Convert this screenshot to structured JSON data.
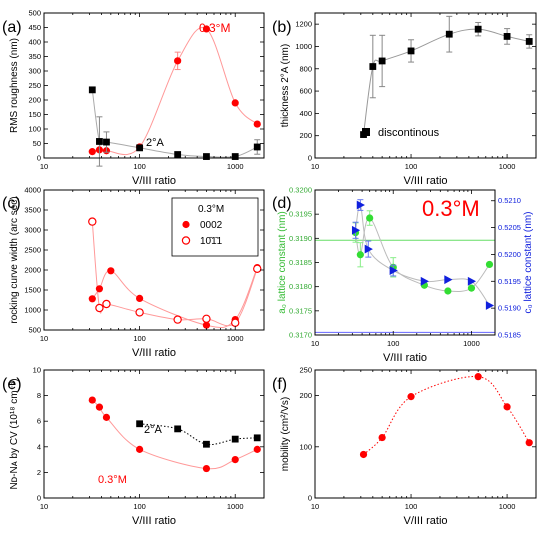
{
  "chart_data": [
    {
      "panel": "(a)",
      "type": "scatter",
      "xlabel": "V/III ratio",
      "ylabel": "RMS roughness  (nm)",
      "xscale": "log",
      "xlim": [
        10,
        2000
      ],
      "ylim": [
        0,
        500
      ],
      "xticks": [
        "10",
        "100",
        "1000"
      ],
      "yticks": [
        "0",
        "50",
        "100",
        "150",
        "200",
        "250",
        "300",
        "350",
        "400",
        "450",
        "500"
      ],
      "annotations": [
        {
          "text": "0.3°M",
          "color": "#ff0000"
        },
        {
          "text": "2°A",
          "color": "#000000"
        }
      ],
      "series": [
        {
          "name": "0.3°M",
          "marker": "circle",
          "color": "#ff0000",
          "x": [
            32,
            38,
            45,
            100,
            250,
            500,
            1000,
            1700
          ],
          "y": [
            22,
            28,
            25,
            38,
            335,
            445,
            190,
            117
          ],
          "err": [
            0,
            0,
            0,
            0,
            30,
            0,
            0,
            0
          ]
        },
        {
          "name": "2°A",
          "marker": "square",
          "color": "#000000",
          "x": [
            32,
            38,
            45,
            100,
            250,
            500,
            1000,
            1700
          ],
          "y": [
            235,
            57,
            55,
            35,
            12,
            5,
            5,
            38
          ],
          "err": [
            0,
            85,
            35,
            0,
            0,
            0,
            0,
            25
          ]
        }
      ]
    },
    {
      "panel": "(b)",
      "type": "scatter",
      "xlabel": "V/III ratio",
      "ylabel": "thickness 2°A  (nm)",
      "xscale": "log",
      "xlim": [
        10,
        2000
      ],
      "ylim": [
        0,
        1300
      ],
      "xticks": [
        "10",
        "100",
        "1000"
      ],
      "yticks": [
        "0",
        "200",
        "400",
        "600",
        "800",
        "1000",
        "1200"
      ],
      "annotations": [
        {
          "text": "discontinous",
          "color": "#000000"
        }
      ],
      "series": [
        {
          "name": "2°A",
          "marker": "square",
          "color": "#000000",
          "x": [
            32,
            40,
            50,
            100,
            250,
            500,
            1000,
            1700
          ],
          "y": [
            210,
            820,
            870,
            960,
            1110,
            1155,
            1090,
            1045
          ],
          "err": [
            0,
            280,
            230,
            100,
            160,
            60,
            70,
            60
          ]
        }
      ]
    },
    {
      "panel": "(c)",
      "type": "scatter",
      "xlabel": "V/III ratio",
      "ylabel": "rocking curve width  (arc sec)",
      "xscale": "log",
      "xlim": [
        10,
        2000
      ],
      "ylim": [
        500,
        4000
      ],
      "xticks": [
        "10",
        "100",
        "1000"
      ],
      "yticks": [
        "500",
        "1000",
        "1500",
        "2000",
        "2500",
        "3000",
        "3500",
        "4000"
      ],
      "legend": {
        "title": "0.3°M",
        "position": "top-right",
        "entries": [
          "0002",
          "10̄1̄1"
        ]
      },
      "series": [
        {
          "name": "0002",
          "marker": "circle",
          "color": "#ff0000",
          "x": [
            32,
            38,
            50,
            100,
            500,
            1000,
            1700
          ],
          "y": [
            1280,
            1530,
            1980,
            1290,
            620,
            760,
            2060
          ]
        },
        {
          "name": "10̄1̄1",
          "marker": "open-circle",
          "color": "#ff0000",
          "x": [
            32,
            38,
            45,
            100,
            250,
            500,
            1000,
            1700
          ],
          "y": [
            3210,
            1050,
            1150,
            940,
            760,
            780,
            680,
            2030
          ]
        }
      ]
    },
    {
      "panel": "(d)",
      "type": "scatter",
      "xlabel": "V/III ratio",
      "ylabel": "a₀ lattice constant  (nm)",
      "y2label": "c₀ lattice constant  (nm)",
      "xscale": "log",
      "xlim": [
        10,
        2000
      ],
      "ylim": [
        0.317,
        0.32
      ],
      "y2lim": [
        0.5185,
        0.5212
      ],
      "xticks": [
        "10",
        "100",
        "1000"
      ],
      "yticks": [
        "0.3170",
        "0.3175",
        "0.3180",
        "0.3185",
        "0.3190",
        "0.3195",
        "0.3200"
      ],
      "y2ticks": [
        "0.5185",
        "0.5190",
        "0.5195",
        "0.5200",
        "0.5205",
        "0.5210"
      ],
      "annotations": [
        {
          "text": "0.3°M",
          "color": "#ff0000"
        }
      ],
      "reference_lines": {
        "a0": 0.31896,
        "c0": 0.51855
      },
      "series": [
        {
          "name": "a₀",
          "marker": "circle",
          "color": "#33dd33",
          "axis": "left",
          "x": [
            33,
            38,
            50,
            100,
            250,
            500,
            1000,
            1700
          ],
          "y": [
            0.31912,
            0.31866,
            0.31942,
            0.3184,
            0.31803,
            0.31791,
            0.31797,
            0.31846
          ],
          "err": [
            0.0002,
            0.00025,
            0.00015,
            0.0002,
            0,
            0,
            0,
            0
          ]
        },
        {
          "name": "c₀",
          "marker": "triangle-right",
          "color": "#1020dd",
          "axis": "right",
          "x": [
            33,
            38,
            48,
            100,
            250,
            500,
            1000,
            1700
          ],
          "y": [
            0.52045,
            0.52092,
            0.5201,
            0.5197,
            0.5195,
            0.51953,
            0.5195,
            0.51905
          ],
          "err": [
            0.00015,
            0.0001,
            0.00015,
            0.0001,
            0,
            0,
            0,
            0
          ]
        }
      ]
    },
    {
      "panel": "(e)",
      "type": "scatter",
      "xlabel": "V/III ratio",
      "ylabel": "Nᴅ-Nᴀ by CV  (10¹⁸ cm⁻³)",
      "xscale": "log",
      "xlim": [
        10,
        2000
      ],
      "ylim": [
        0,
        10
      ],
      "xticks": [
        "10",
        "100",
        "1000"
      ],
      "yticks": [
        "0",
        "2",
        "4",
        "6",
        "8",
        "10"
      ],
      "annotations": [
        {
          "text": "2°A",
          "color": "#000000"
        },
        {
          "text": "0.3°M",
          "color": "#ff0000"
        }
      ],
      "series": [
        {
          "name": "0.3°M",
          "marker": "circle",
          "color": "#ff0000",
          "x": [
            32,
            38,
            45,
            100,
            500,
            1000,
            1700
          ],
          "y": [
            7.65,
            7.1,
            6.3,
            3.8,
            2.3,
            3.0,
            3.8
          ]
        },
        {
          "name": "2°A",
          "marker": "square",
          "color": "#000000",
          "x": [
            100,
            250,
            500,
            1000,
            1700
          ],
          "y": [
            5.8,
            5.4,
            4.2,
            4.6,
            4.7
          ]
        }
      ]
    },
    {
      "panel": "(f)",
      "type": "scatter",
      "xlabel": "V/III ratio",
      "ylabel": "mobility  (cm²/Vs)",
      "xscale": "log",
      "xlim": [
        10,
        2000
      ],
      "ylim": [
        0,
        250
      ],
      "xticks": [
        "10",
        "100",
        "1000"
      ],
      "yticks": [
        "0",
        "100",
        "200",
        "250"
      ],
      "series": [
        {
          "name": "0.3°M",
          "marker": "circle",
          "color": "#ff0000",
          "x": [
            32,
            50,
            100,
            500,
            1000,
            1700
          ],
          "y": [
            85,
            118,
            198,
            237,
            178,
            108
          ]
        }
      ]
    }
  ]
}
